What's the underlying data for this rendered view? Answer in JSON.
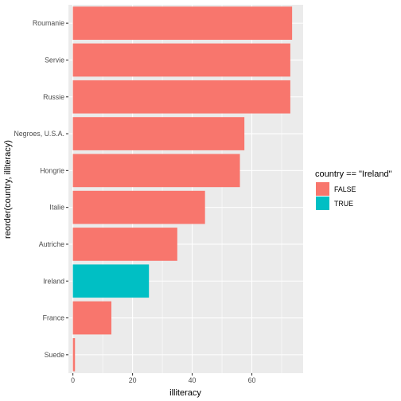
{
  "chart_data": {
    "type": "bar",
    "orientation": "horizontal",
    "categories": [
      "Roumanie",
      "Servie",
      "Russie",
      "Negroes, U.S.A.",
      "Hongrie",
      "Italie",
      "Autriche",
      "Ireland",
      "France",
      "Suede"
    ],
    "values": [
      73.5,
      72.9,
      72.9,
      57.5,
      56.0,
      44.3,
      35.0,
      25.5,
      12.9,
      0.7
    ],
    "fill_group": [
      "FALSE",
      "FALSE",
      "FALSE",
      "FALSE",
      "FALSE",
      "FALSE",
      "FALSE",
      "TRUE",
      "FALSE",
      "FALSE"
    ],
    "xlabel": "illiteracy",
    "ylabel": "reorder(country, illiteracy)",
    "xlim": [
      -1.5,
      77.2
    ],
    "xticks": [
      0,
      20,
      40,
      60
    ],
    "xtick_labels": [
      "0",
      "20",
      "40",
      "60"
    ],
    "grid": true,
    "legend": {
      "title": "country == \"Ireland\"",
      "position": "right",
      "entries": [
        {
          "label": "FALSE",
          "color": "#F8766D"
        },
        {
          "label": "TRUE",
          "color": "#00BFC4"
        }
      ]
    },
    "colors": {
      "FALSE": "#F8766D",
      "TRUE": "#00BFC4",
      "panel": "#EBEBEB",
      "grid": "#FFFFFF"
    }
  }
}
